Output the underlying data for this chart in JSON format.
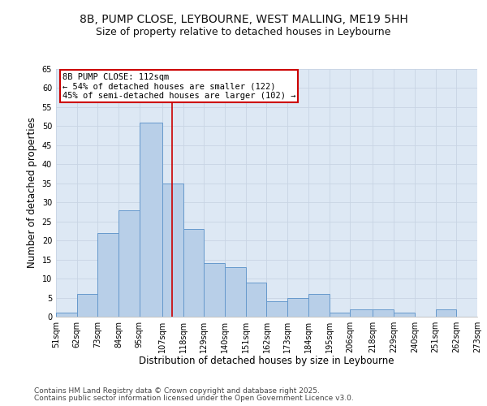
{
  "title_line1": "8B, PUMP CLOSE, LEYBOURNE, WEST MALLING, ME19 5HH",
  "title_line2": "Size of property relative to detached houses in Leybourne",
  "xlabel": "Distribution of detached houses by size in Leybourne",
  "ylabel": "Number of detached properties",
  "bin_edges": [
    51,
    62,
    73,
    84,
    95,
    107,
    118,
    129,
    140,
    151,
    162,
    173,
    184,
    195,
    206,
    218,
    229,
    240,
    251,
    262,
    273
  ],
  "bar_heights": [
    1,
    6,
    22,
    28,
    51,
    35,
    23,
    14,
    13,
    9,
    4,
    5,
    6,
    1,
    2,
    2,
    1,
    0,
    2,
    0
  ],
  "bar_color": "#b8cfe8",
  "bar_edge_color": "#6699cc",
  "bar_linewidth": 0.7,
  "vline_x": 112,
  "vline_color": "#cc0000",
  "vline_linewidth": 1.2,
  "annotation_line1": "8B PUMP CLOSE: 112sqm",
  "annotation_line2": "← 54% of detached houses are smaller (122)",
  "annotation_line3": "45% of semi-detached houses are larger (102) →",
  "annotation_fontsize": 7.5,
  "annotation_box_color": "#ffffff",
  "annotation_box_edge": "#cc0000",
  "ylim": [
    0,
    65
  ],
  "yticks": [
    0,
    5,
    10,
    15,
    20,
    25,
    30,
    35,
    40,
    45,
    50,
    55,
    60,
    65
  ],
  "grid_color": "#c8d4e4",
  "bg_color": "#dde8f4",
  "fig_bg_color": "#ffffff",
  "title_fontsize": 10,
  "subtitle_fontsize": 9,
  "tick_label_fontsize": 7,
  "axis_label_fontsize": 8.5,
  "footer_line1": "Contains HM Land Registry data © Crown copyright and database right 2025.",
  "footer_line2": "Contains public sector information licensed under the Open Government Licence v3.0.",
  "footer_fontsize": 6.5
}
